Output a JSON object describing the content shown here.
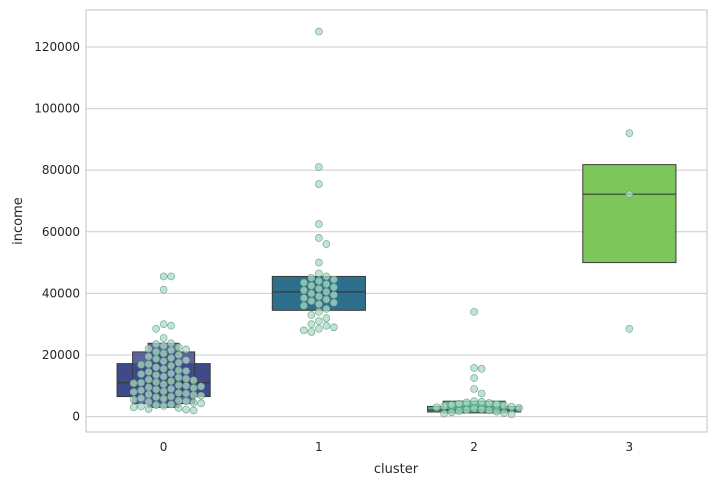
{
  "chart_data": {
    "type": "boxen",
    "xlabel": "cluster",
    "ylabel": "income",
    "categories": [
      "0",
      "1",
      "2",
      "3"
    ],
    "ylim": [
      -5000,
      132000
    ],
    "yticks": [
      0,
      20000,
      40000,
      60000,
      80000,
      100000,
      120000
    ],
    "ytick_labels": [
      "0",
      "20000",
      "40000",
      "60000",
      "80000",
      "100000",
      "120000"
    ],
    "grid": true,
    "colors": [
      "#3f4a8a",
      "#2e6f8e",
      "#40b48a",
      "#7dc65a"
    ],
    "boxes": [
      {
        "category": "0",
        "color": "#3f4a8a",
        "levels": [
          {
            "q_low": 6500,
            "q_high": 17200,
            "width_frac": 0.6
          },
          {
            "q_low": 4200,
            "q_high": 21000,
            "width_frac": 0.4
          },
          {
            "q_low": 3000,
            "q_high": 23800,
            "width_frac": 0.2
          }
        ],
        "median": 11000
      },
      {
        "category": "1",
        "color": "#2e6f8e",
        "levels": [
          {
            "q_low": 34500,
            "q_high": 45500,
            "width_frac": 0.6
          }
        ],
        "median": 40500
      },
      {
        "category": "2",
        "color": "#40b48a",
        "levels": [
          {
            "q_low": 1500,
            "q_high": 3300,
            "width_frac": 0.6
          },
          {
            "q_low": 1200,
            "q_high": 5000,
            "width_frac": 0.4
          }
        ],
        "median": 2100
      },
      {
        "category": "3",
        "color": "#7dc65a",
        "levels": [
          {
            "q_low": 50000,
            "q_high": 81800,
            "width_frac": 0.6
          }
        ],
        "median": 72200
      }
    ],
    "points": [
      {
        "category": "0",
        "values": [
          45500,
          45500,
          41200,
          30000,
          29500,
          28500,
          25500,
          23800,
          23500,
          23000,
          22500,
          22000,
          21800,
          21500,
          21000,
          20500,
          20000,
          19500,
          19000,
          18700,
          18300,
          18000,
          17500,
          17000,
          16800,
          16500,
          16000,
          15500,
          15000,
          14800,
          14500,
          14000,
          13800,
          13500,
          13000,
          12700,
          12300,
          12000,
          11800,
          11500,
          11200,
          11000,
          10800,
          10500,
          10200,
          10000,
          9800,
          9500,
          9300,
          9000,
          8800,
          8500,
          8200,
          8000,
          7700,
          7500,
          7200,
          7000,
          6800,
          6500,
          6300,
          6000,
          5800,
          5500,
          5200,
          5000,
          4800,
          4500,
          4300,
          4000,
          3800,
          3500,
          3300,
          3000,
          2800,
          2500,
          2300,
          2000
        ]
      },
      {
        "category": "1",
        "values": [
          125000,
          81000,
          75500,
          62500,
          58000,
          56000,
          50000,
          46500,
          45500,
          45000,
          44500,
          44000,
          43500,
          43000,
          42500,
          42000,
          41500,
          41000,
          40500,
          40000,
          39500,
          39000,
          38500,
          38000,
          37500,
          37000,
          36500,
          36000,
          35000,
          34000,
          33000,
          32000,
          31000,
          30000,
          29500,
          29000,
          28500,
          28000,
          27500
        ]
      },
      {
        "category": "2",
        "values": [
          34000,
          15800,
          15500,
          12500,
          9000,
          7500,
          5000,
          4800,
          4600,
          4400,
          4200,
          4000,
          3800,
          3600,
          3400,
          3200,
          3000,
          2800,
          2600,
          2400,
          2200,
          2000,
          1800,
          1600,
          1400,
          1200,
          1000,
          800
        ]
      },
      {
        "category": "3",
        "values": [
          92000,
          72200,
          28500
        ]
      }
    ]
  }
}
